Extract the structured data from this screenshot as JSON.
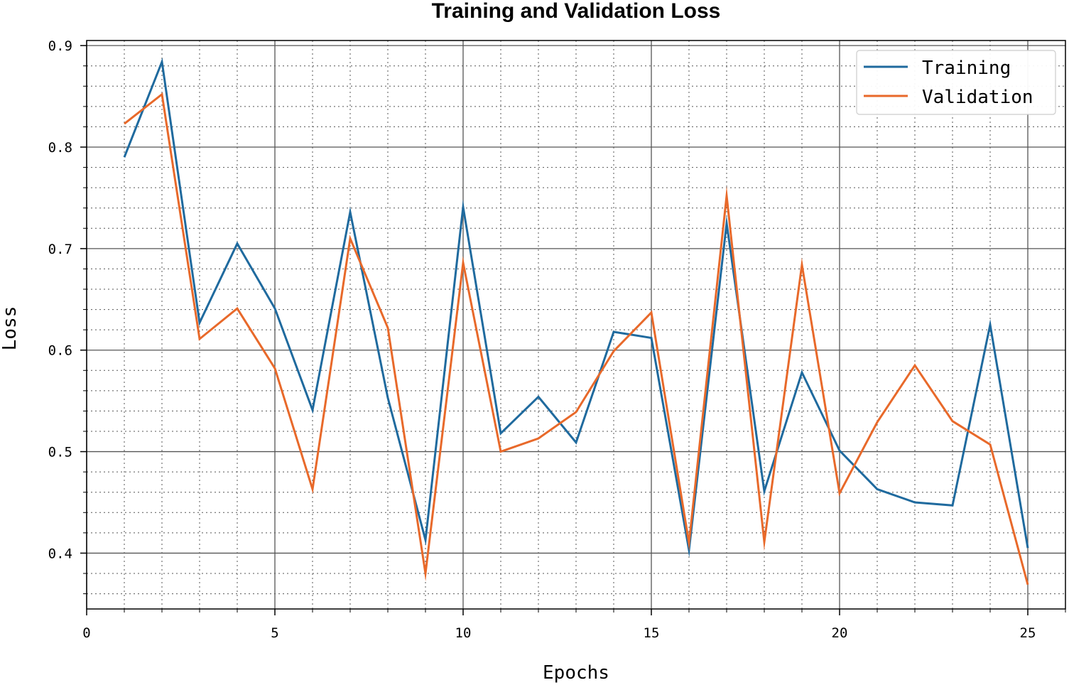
{
  "chart_data": {
    "type": "line",
    "title": "Training and Validation Loss",
    "xlabel": "Epochs",
    "ylabel": "Loss",
    "xlim": [
      0,
      26
    ],
    "ylim": [
      0.345,
      0.905
    ],
    "xticks": [
      0,
      5,
      10,
      15,
      20,
      25
    ],
    "xtick_labels": [
      "0",
      "5",
      "10",
      "15",
      "20",
      "25"
    ],
    "yticks": [
      0.4,
      0.5,
      0.6,
      0.7,
      0.8,
      0.9
    ],
    "ytick_labels": [
      "0.4",
      "0.5",
      "0.6",
      "0.7",
      "0.8",
      "0.9"
    ],
    "grid": true,
    "legend_position": "top-right",
    "x": [
      1,
      2,
      3,
      4,
      5,
      6,
      7,
      8,
      9,
      10,
      11,
      12,
      13,
      14,
      15,
      16,
      17,
      18,
      19,
      20,
      21,
      22,
      23,
      24,
      25
    ],
    "series": [
      {
        "name": "Training",
        "color": "#1f6a9e",
        "values": [
          0.79,
          0.884,
          0.627,
          0.705,
          0.641,
          0.541,
          0.736,
          0.553,
          0.413,
          0.741,
          0.518,
          0.554,
          0.509,
          0.618,
          0.612,
          0.403,
          0.725,
          0.461,
          0.578,
          0.501,
          0.463,
          0.45,
          0.447,
          0.625,
          0.405
        ]
      },
      {
        "name": "Validation",
        "color": "#e8692a",
        "values": [
          0.823,
          0.852,
          0.611,
          0.641,
          0.582,
          0.463,
          0.71,
          0.622,
          0.38,
          0.686,
          0.5,
          0.513,
          0.539,
          0.599,
          0.637,
          0.41,
          0.752,
          0.411,
          0.684,
          0.459,
          0.529,
          0.585,
          0.53,
          0.507,
          0.369
        ]
      }
    ]
  }
}
